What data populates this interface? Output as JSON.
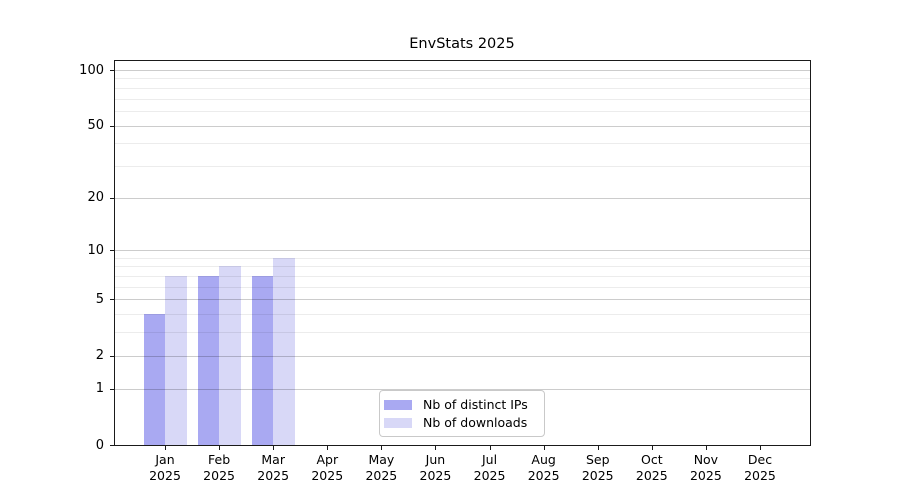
{
  "chart_data": {
    "type": "bar",
    "title": "EnvStats 2025",
    "categories": [
      {
        "month": "Jan",
        "year": "2025"
      },
      {
        "month": "Feb",
        "year": "2025"
      },
      {
        "month": "Mar",
        "year": "2025"
      },
      {
        "month": "Apr",
        "year": "2025"
      },
      {
        "month": "May",
        "year": "2025"
      },
      {
        "month": "Jun",
        "year": "2025"
      },
      {
        "month": "Jul",
        "year": "2025"
      },
      {
        "month": "Aug",
        "year": "2025"
      },
      {
        "month": "Sep",
        "year": "2025"
      },
      {
        "month": "Oct",
        "year": "2025"
      },
      {
        "month": "Nov",
        "year": "2025"
      },
      {
        "month": "Dec",
        "year": "2025"
      }
    ],
    "series": [
      {
        "name": "Nb of distinct IPs",
        "color": "#a9a9f2",
        "values": [
          4,
          7,
          7,
          0,
          0,
          0,
          0,
          0,
          0,
          0,
          0,
          0
        ]
      },
      {
        "name": "Nb of downloads",
        "color": "#d8d8f7",
        "values": [
          7,
          8,
          9,
          0,
          0,
          0,
          0,
          0,
          0,
          0,
          0,
          0
        ]
      }
    ],
    "y_axis": {
      "scale": "log1p",
      "major_ticks": [
        0,
        1,
        2,
        5,
        10,
        20,
        50,
        100
      ],
      "minor_ticks": [
        3,
        4,
        6,
        7,
        8,
        9,
        30,
        40,
        60,
        70,
        80,
        90
      ],
      "ylim": [
        0,
        113
      ]
    },
    "grid": {
      "on": true,
      "major_color": "rgba(0,0,0,0.20)",
      "minor_color": "rgba(0,0,0,0.075)"
    },
    "legend": {
      "position": "lower-center-inside"
    },
    "xlabel": "",
    "ylabel": ""
  }
}
